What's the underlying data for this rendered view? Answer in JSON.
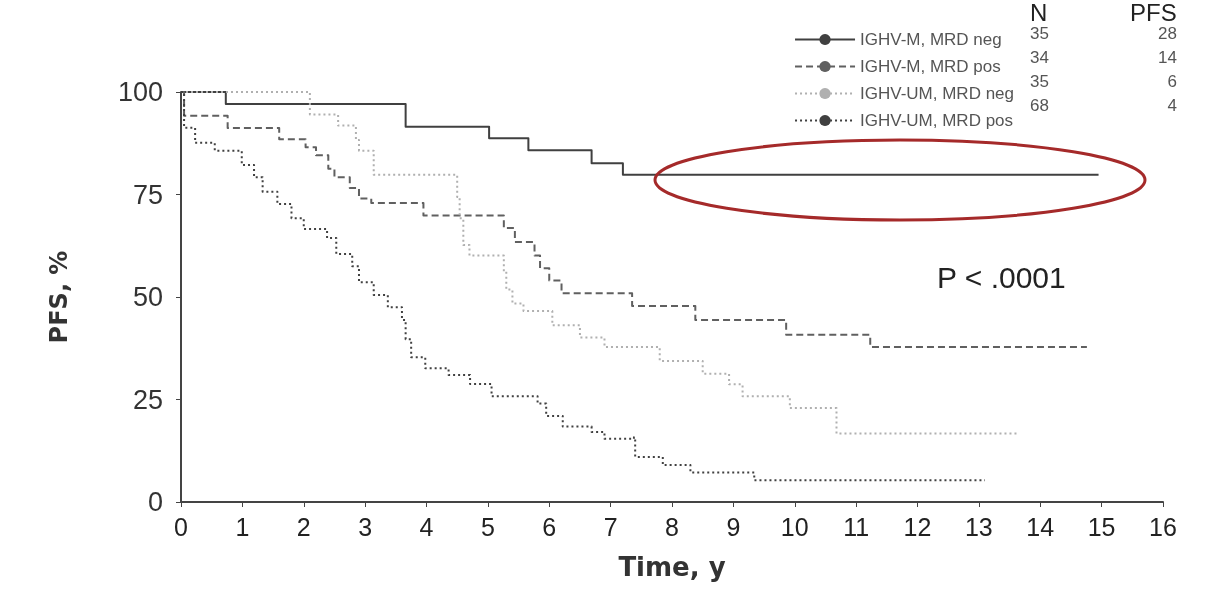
{
  "chart_data": {
    "type": "step",
    "xlabel": "Time, y",
    "ylabel": "PFS, %",
    "xlim": [
      0,
      16
    ],
    "xticks": [
      0,
      1,
      2,
      3,
      4,
      5,
      6,
      7,
      8,
      9,
      10,
      11,
      12,
      13,
      14,
      15,
      16
    ],
    "ylim": [
      0,
      100
    ],
    "yticks": [
      0,
      25,
      50,
      75,
      100
    ],
    "grid": false,
    "legend": "top right",
    "marker": "none",
    "annotations": [
      "N",
      "PFS",
      "35",
      "28",
      "34",
      "14",
      "35",
      "6",
      "68",
      "4",
      "P < .0001"
    ],
    "series": [
      {
        "name": "IGHV-M, MRD neg",
        "color": "#404040",
        "line_style": "solid",
        "x": [
          0,
          0.73,
          3.66,
          5.02,
          5.66,
          6.69,
          7.2,
          14.95
        ],
        "values": [
          100,
          97.1,
          91.5,
          88.7,
          85.8,
          82.6,
          79.8,
          79.8
        ]
      },
      {
        "name": "IGHV-M, MRD pos",
        "color": "#606060",
        "line_style": "dashed",
        "x": [
          0,
          0.05,
          0.76,
          1.6,
          2.03,
          2.2,
          2.4,
          2.5,
          2.75,
          2.9,
          3.1,
          3.95,
          5.26,
          5.44,
          5.76,
          5.85,
          6.0,
          6.2,
          7.35,
          8.38,
          9.86,
          11.23,
          14.76
        ],
        "values": [
          100,
          94.2,
          91.2,
          88.5,
          86.5,
          84.6,
          81.3,
          79.2,
          76.6,
          74,
          72.9,
          69.9,
          66.8,
          63.4,
          60.1,
          57,
          54,
          50.9,
          47.8,
          44.4,
          40.8,
          37.8,
          37.8
        ]
      },
      {
        "name": "IGHV-UM, MRD neg",
        "color": "#b0b0b0",
        "line_style": "dotted",
        "x": [
          0,
          2.1,
          2.56,
          2.85,
          2.9,
          3.14,
          4.5,
          4.54,
          4.6,
          4.7,
          5.26,
          5.3,
          5.4,
          5.58,
          6.05,
          6.5,
          6.9,
          7.8,
          8.5,
          8.93,
          9.15,
          9.92,
          10.68,
          13.63
        ],
        "values": [
          100,
          94.5,
          91.8,
          88.3,
          85.7,
          79.8,
          74.4,
          69.2,
          62.7,
          60.1,
          56.2,
          51.8,
          48.4,
          46.6,
          43.1,
          40.1,
          37.8,
          34.4,
          31.3,
          28.7,
          25.8,
          22.9,
          16.7,
          16.7
        ]
      },
      {
        "name": "IGHV-UM, MRD pos",
        "color": "#404040",
        "line_style": "dotted",
        "x": [
          0,
          0.05,
          0.23,
          0.55,
          0.99,
          1.19,
          1.33,
          1.57,
          1.8,
          2.0,
          2.38,
          2.53,
          2.79,
          2.9,
          3.14,
          3.37,
          3.6,
          3.66,
          3.75,
          3.98,
          4.36,
          4.71,
          5.06,
          5.81,
          5.95,
          6.22,
          6.69,
          6.9,
          7.38,
          7.4,
          7.85,
          8.3,
          9.34,
          13.1
        ],
        "values": [
          100,
          91.3,
          87.6,
          85.7,
          82.2,
          79.2,
          75.7,
          72.7,
          69.2,
          66.6,
          64.4,
          60.5,
          57.5,
          53.6,
          50.5,
          47.5,
          44.4,
          39.7,
          35.3,
          32.6,
          31,
          28.8,
          25.8,
          24,
          21,
          18.4,
          17.1,
          15.4,
          15.8,
          11,
          9,
          7.2,
          5.3,
          5.3
        ]
      }
    ]
  }
}
